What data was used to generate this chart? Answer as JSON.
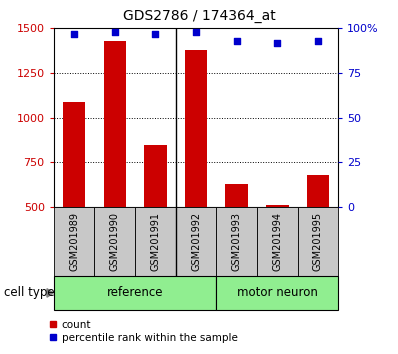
{
  "title": "GDS2786 / 174364_at",
  "samples": [
    "GSM201989",
    "GSM201990",
    "GSM201991",
    "GSM201992",
    "GSM201993",
    "GSM201994",
    "GSM201995"
  ],
  "counts": [
    1090,
    1430,
    850,
    1380,
    630,
    510,
    680
  ],
  "percentiles": [
    97,
    98,
    97,
    98,
    93,
    92,
    93
  ],
  "groups": [
    {
      "name": "reference",
      "indices": [
        0,
        1,
        2,
        3
      ]
    },
    {
      "name": "motor neuron",
      "indices": [
        4,
        5,
        6
      ]
    }
  ],
  "bar_color": "#CC0000",
  "dot_color": "#0000CC",
  "ylim_left": [
    500,
    1500
  ],
  "ylim_right": [
    0,
    100
  ],
  "yticks_left": [
    500,
    750,
    1000,
    1250,
    1500
  ],
  "yticks_right": [
    0,
    25,
    50,
    75,
    100
  ],
  "tick_area_color": "#C8C8C8",
  "cell_label_color": "#90EE90",
  "divider_after": 3,
  "legend_count": "count",
  "legend_percentile": "percentile rank within the sample"
}
